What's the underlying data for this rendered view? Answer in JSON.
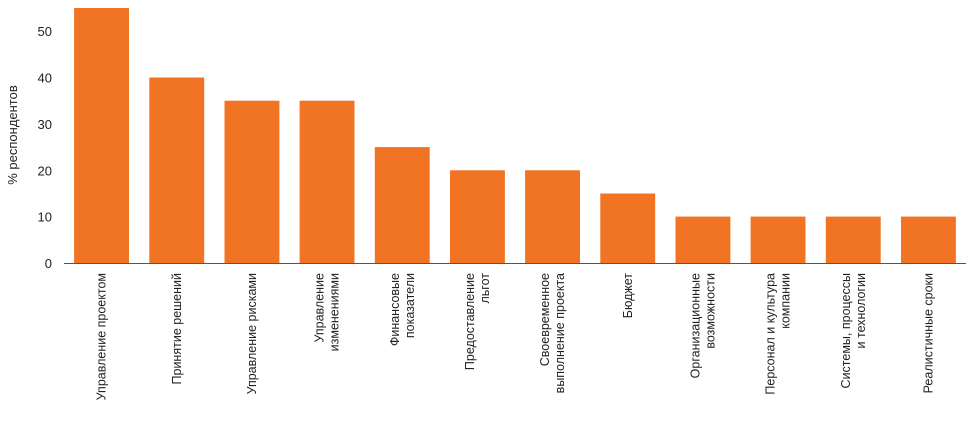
{
  "chart_data": {
    "type": "bar",
    "ylabel": "% респондентов",
    "ylim": [
      0,
      55
    ],
    "yticks": [
      0,
      10,
      20,
      30,
      40,
      50
    ],
    "bar_color": "#f07423",
    "categories": [
      [
        "Управление проектом"
      ],
      [
        "Принятие решений"
      ],
      [
        "Управление рисками"
      ],
      [
        "Управление",
        "изменениями"
      ],
      [
        "Финансовые",
        "показатели"
      ],
      [
        "Предоставление",
        "льгот"
      ],
      [
        "Своевременное",
        "выполнение проекта"
      ],
      [
        "Бюджет"
      ],
      [
        "Организационные",
        "возможности"
      ],
      [
        "Персонал и культура",
        "компании"
      ],
      [
        "Системы, процессы",
        "и технологии"
      ],
      [
        "Реалистичные сроки"
      ]
    ],
    "values": [
      55,
      40,
      35,
      35,
      25,
      20,
      20,
      15,
      10,
      10,
      10,
      10
    ],
    "grid": false,
    "legend": "none"
  }
}
